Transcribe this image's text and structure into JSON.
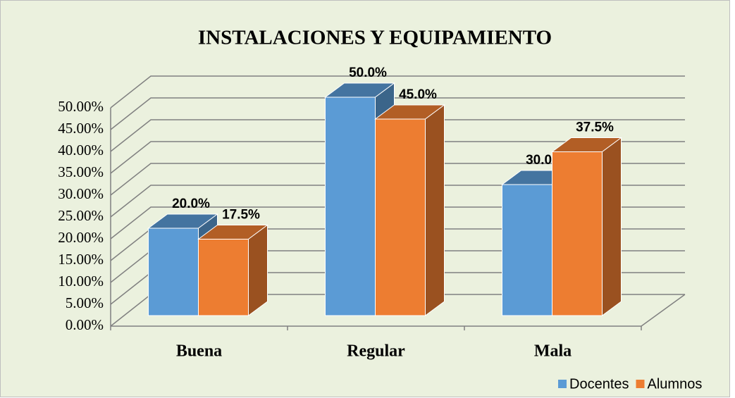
{
  "chart_data": {
    "type": "bar3d",
    "title": "INSTALACIONES Y EQUIPAMIENTO",
    "categories": [
      "Buena",
      "Regular",
      "Mala"
    ],
    "series": [
      {
        "name": "Docentes",
        "color": "#5b9bd5",
        "values": [
          20,
          50,
          30
        ],
        "value_labels": [
          "20.0%",
          "50.0%",
          "30.0%"
        ]
      },
      {
        "name": "Alumnos",
        "color": "#ed7d31",
        "values": [
          17.5,
          45,
          37.5
        ],
        "value_labels": [
          "17.5%",
          "45.0%",
          "37.5%"
        ]
      }
    ],
    "ylim": [
      0,
      50
    ],
    "yticks": [
      {
        "value": 0,
        "label": "0.00%"
      },
      {
        "value": 5,
        "label": "5.00%"
      },
      {
        "value": 10,
        "label": "10.00%"
      },
      {
        "value": 15,
        "label": "15.00%"
      },
      {
        "value": 20,
        "label": "20.00%"
      },
      {
        "value": 25,
        "label": "25.00%"
      },
      {
        "value": 30,
        "label": "30.00%"
      },
      {
        "value": 35,
        "label": "35.00%"
      },
      {
        "value": 40,
        "label": "40.00%"
      },
      {
        "value": 45,
        "label": "45.00%"
      },
      {
        "value": 50,
        "label": "50.00%"
      }
    ],
    "grid": true,
    "legend": "bottom-right"
  }
}
